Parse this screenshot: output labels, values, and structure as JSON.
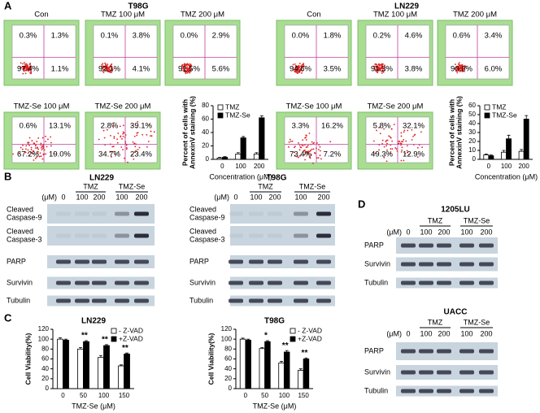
{
  "figure": {
    "panel_labels": [
      "A",
      "B",
      "C",
      "D"
    ],
    "flow": [
      {
        "cell_line": "T98G",
        "plots": [
          {
            "label": "Con",
            "quadrants": [
              "0.3%",
              "1.3%",
              "97.4%",
              "1.1%"
            ]
          },
          {
            "label": "TMZ 100 μM",
            "quadrants": [
              "0.1%",
              "3.8%",
              "92.1%",
              "4.1%"
            ]
          },
          {
            "label": "TMZ 200 μM",
            "quadrants": [
              "0.0%",
              "2.9%",
              "91.5%",
              "5.6%"
            ]
          },
          {
            "label": "TMZ-Se 100 μM",
            "quadrants": [
              "0.6%",
              "13.1%",
              "67.2%",
              "19.0%"
            ]
          },
          {
            "label": "TMZ-Se 200 μM",
            "quadrants": [
              "2.8%",
              "39.1%",
              "34.7%",
              "23.4%"
            ]
          }
        ]
      },
      {
        "cell_line": "LN229",
        "plots": [
          {
            "label": "Con",
            "quadrants": [
              "0.0%",
              "1.8%",
              "94.6%",
              "3.5%"
            ]
          },
          {
            "label": "TMZ 100 μM",
            "quadrants": [
              "0.2%",
              "4.6%",
              "91.3%",
              "3.8%"
            ]
          },
          {
            "label": "TMZ 200 μM",
            "quadrants": [
              "0.6%",
              "3.4%",
              "90.0%",
              "6.0%"
            ]
          },
          {
            "label": "TMZ-Se 100 μM",
            "quadrants": [
              "3.3%",
              "16.2%",
              "73.4%",
              "7.2%"
            ]
          },
          {
            "label": "TMZ-Se 200 μM",
            "quadrants": [
              "5.8%",
              "32.1%",
              "49.3%",
              "12.9%"
            ]
          }
        ]
      }
    ],
    "blots": [
      {
        "cell_line": "LN229",
        "groups": [
          "TMZ",
          "TMZ-Se"
        ],
        "unit": "(μM)",
        "doses": [
          "0",
          "100",
          "200",
          "100",
          "200"
        ],
        "rows": [
          [
            "Cleaved",
            "Caspase-9"
          ],
          [
            "Cleaved",
            "Caspase-3"
          ],
          [
            "PARP"
          ],
          [
            "Survivin"
          ],
          [
            "Tubulin"
          ]
        ]
      },
      {
        "cell_line": "T98G",
        "groups": [
          "TMZ",
          "TMZ-Se"
        ],
        "unit": "(μM)",
        "doses": [
          "0",
          "100",
          "200",
          "100",
          "200"
        ],
        "rows": [
          [
            "Cleaved",
            "Caspase-9"
          ],
          [
            "Cleaved",
            "Caspase-3"
          ],
          [
            "PARP"
          ],
          [
            "Survivin"
          ],
          [
            "Tubulin"
          ]
        ]
      },
      {
        "cell_line": "1205LU",
        "groups": [
          "TMZ",
          "TMZ-Se"
        ],
        "unit": "(μM)",
        "doses": [
          "0",
          "100",
          "200",
          "100",
          "200"
        ],
        "rows": [
          [
            "PARP"
          ],
          [
            "Survivin"
          ],
          [
            "Tubulin"
          ]
        ]
      },
      {
        "cell_line": "UACC",
        "groups": [
          "TMZ",
          "TMZ-Se"
        ],
        "unit": "(μM)",
        "doses": [
          "0",
          "100",
          "200",
          "100",
          "200"
        ],
        "rows": [
          [
            "PARP"
          ],
          [
            "Survivin"
          ],
          [
            "Tubulin"
          ]
        ]
      }
    ]
  },
  "chart_data": [
    {
      "type": "bar",
      "y_label": [
        "Percent of cells with",
        "AnnexinV staining (%)"
      ],
      "x_label": "Concentration (μM)",
      "categories": [
        "0",
        "100",
        "200"
      ],
      "legend": "upper left",
      "series": [
        {
          "name": "TMZ",
          "color": "#ffffff",
          "values": [
            2,
            8,
            8
          ],
          "errors": [
            1,
            2,
            2
          ]
        },
        {
          "name": "TMZ-Se",
          "color": "#000000",
          "values": [
            3,
            32,
            62
          ],
          "errors": [
            1,
            2,
            3
          ]
        }
      ],
      "ylim": [
        0,
        80
      ],
      "yticks": [
        0,
        20,
        40,
        60,
        80
      ]
    },
    {
      "type": "bar",
      "y_label": [
        "Percent of cells with",
        "AnnexinV staining (%)"
      ],
      "x_label": "Concentration (μM)",
      "categories": [
        "0",
        "100",
        "200"
      ],
      "legend": "upper left",
      "series": [
        {
          "name": "TMZ",
          "color": "#ffffff",
          "values": [
            5,
            8,
            9
          ],
          "errors": [
            1,
            2,
            2
          ]
        },
        {
          "name": "TMZ-Se",
          "color": "#000000",
          "values": [
            4,
            23,
            45
          ],
          "errors": [
            1,
            4,
            4
          ]
        }
      ],
      "ylim": [
        0,
        60
      ],
      "yticks": [
        0,
        10,
        20,
        30,
        40,
        50,
        60
      ]
    },
    {
      "type": "bar",
      "title": "LN229",
      "y_label": [
        "Cell Viability(%)"
      ],
      "x_label": "TMZ-Se (μM)",
      "categories": [
        "0",
        "50",
        "100",
        "150"
      ],
      "legend": "upper right",
      "series": [
        {
          "name": "- Z-VAD",
          "color": "#ffffff",
          "values": [
            100,
            80,
            63,
            46
          ],
          "errors": [
            3,
            3,
            4,
            2
          ]
        },
        {
          "name": "+Z-VAD",
          "color": "#000000",
          "values": [
            98,
            95,
            87,
            70
          ],
          "errors": [
            2,
            2,
            2,
            2
          ]
        }
      ],
      "significance": [
        null,
        "**",
        "**",
        "**"
      ],
      "ylim": [
        0,
        120
      ],
      "yticks": [
        0,
        20,
        40,
        60,
        80,
        100,
        120
      ]
    },
    {
      "type": "bar",
      "title": "T98G",
      "y_label": [
        "Cell Viability(%)"
      ],
      "x_label": "TMZ-Se (μM)",
      "categories": [
        "0",
        "50",
        "100",
        "150"
      ],
      "legend": "upper right",
      "series": [
        {
          "name": "- Z-VAD",
          "color": "#ffffff",
          "values": [
            100,
            81,
            52,
            37
          ],
          "errors": [
            2,
            2,
            3,
            3
          ]
        },
        {
          "name": "+Z-VAD",
          "color": "#000000",
          "values": [
            98,
            95,
            74,
            60
          ],
          "errors": [
            2,
            2,
            3,
            2
          ]
        }
      ],
      "significance": [
        null,
        "*",
        "**",
        "**"
      ],
      "ylim": [
        0,
        120
      ],
      "yticks": [
        0,
        20,
        40,
        60,
        80,
        100,
        120
      ]
    }
  ]
}
